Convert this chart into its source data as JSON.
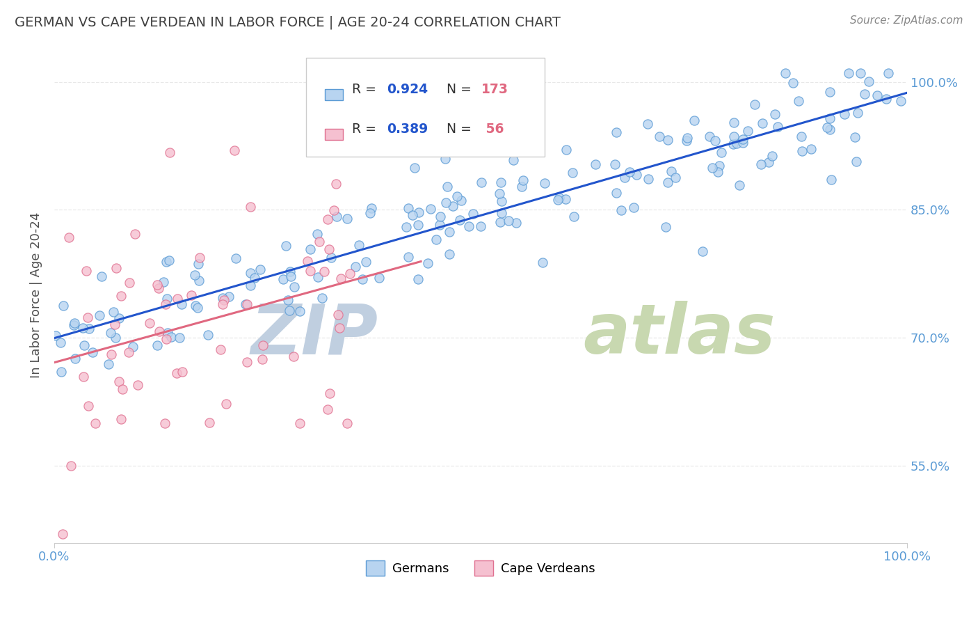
{
  "title": "GERMAN VS CAPE VERDEAN IN LABOR FORCE | AGE 20-24 CORRELATION CHART",
  "source": "Source: ZipAtlas.com",
  "ylabel": "In Labor Force | Age 20-24",
  "xlim": [
    0.0,
    1.0
  ],
  "ylim": [
    0.46,
    1.04
  ],
  "xtick_labels": [
    "0.0%",
    "100.0%"
  ],
  "xtick_positions": [
    0.0,
    1.0
  ],
  "ytick_labels": [
    "55.0%",
    "70.0%",
    "85.0%",
    "100.0%"
  ],
  "ytick_positions": [
    0.55,
    0.7,
    0.85,
    1.0
  ],
  "german_R": 0.924,
  "german_N": 173,
  "capeverdean_R": 0.389,
  "capeverdean_N": 56,
  "german_color": "#b8d4f0",
  "german_edge_color": "#5b9bd5",
  "capeverdean_color": "#f5c0d0",
  "capeverdean_edge_color": "#e07090",
  "trendline_german_color": "#2255cc",
  "trendline_capeverdean_color": "#e06880",
  "watermark_zip_color": "#c0cfe0",
  "watermark_atlas_color": "#c8d8b0",
  "background_color": "#ffffff",
  "title_color": "#404040",
  "axis_label_color": "#505050",
  "tick_label_color": "#5b9bd5",
  "grid_color": "#e8e8e8",
  "scatter_size": 90,
  "legend_box_color": "#f0f0f0",
  "legend_border_color": "#cccccc"
}
